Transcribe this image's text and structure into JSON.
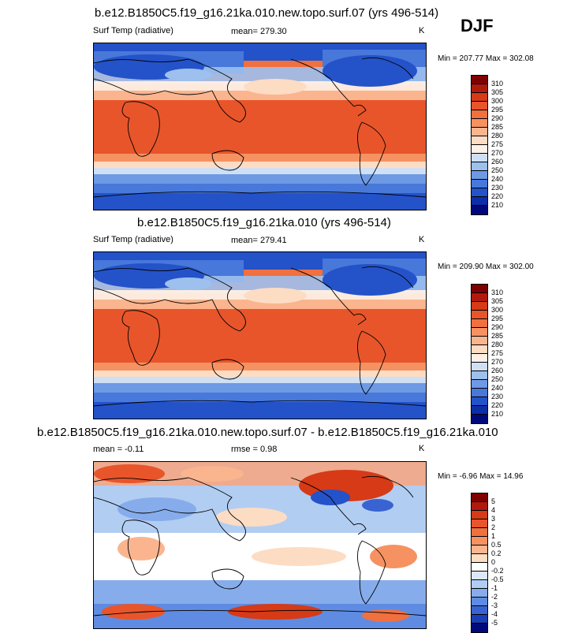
{
  "season": "DJF",
  "panels": [
    {
      "title": "b.e12.B1850C5.f19_g16.21ka.010.new.topo.surf.07 (yrs 496-514)",
      "variable": "Surf Temp (radiative)",
      "stat1": "mean= 279.30",
      "stat2": "",
      "units": "K",
      "minmax": "Min = 207.77 Max = 302.08",
      "levels": [
        "310",
        "305",
        "300",
        "295",
        "290",
        "285",
        "280",
        "275",
        "270",
        "260",
        "250",
        "240",
        "230",
        "220",
        "210"
      ]
    },
    {
      "title": "b.e12.B1850C5.f19_g16.21ka.010 (yrs 496-514)",
      "variable": "Surf Temp (radiative)",
      "stat1": "mean= 279.41",
      "stat2": "",
      "units": "K",
      "minmax": "Min = 209.90 Max = 302.00",
      "levels": [
        "310",
        "305",
        "300",
        "295",
        "290",
        "285",
        "280",
        "275",
        "270",
        "260",
        "250",
        "240",
        "230",
        "220",
        "210"
      ]
    },
    {
      "title": "b.e12.B1850C5.f19_g16.21ka.010.new.topo.surf.07 - b.e12.B1850C5.f19_g16.21ka.010",
      "variable": "",
      "stat1": "mean =  -0.11",
      "stat2": "rmse =   0.98",
      "units": "K",
      "minmax": "Min =  -6.96 Max =  14.96",
      "levels": [
        "5",
        "4",
        "3",
        "2",
        "1",
        "0.5",
        "0.2",
        "0",
        "-0.2",
        "-0.5",
        "-1",
        "-2",
        "-3",
        "-4",
        "-5"
      ]
    }
  ],
  "colors": {
    "abs_scale": [
      "#7f0000",
      "#b2190d",
      "#d63a16",
      "#e8552b",
      "#f0703f",
      "#f69262",
      "#fab58f",
      "#fddcc4",
      "#fdf0e6",
      "#cfe0f5",
      "#9dc0ee",
      "#6e9ae4",
      "#4778da",
      "#2452c9",
      "#0d2ea8",
      "#00097a"
    ],
    "diff_scale": [
      "#7f0000",
      "#b2190d",
      "#d63a16",
      "#e8552b",
      "#f0703f",
      "#f69262",
      "#fab58f",
      "#fddcc4",
      "#ffffff",
      "#dbe8f8",
      "#b2cdf2",
      "#86aceb",
      "#5f8ce2",
      "#3a63d2",
      "#1a3eb7",
      "#00097a"
    ]
  }
}
